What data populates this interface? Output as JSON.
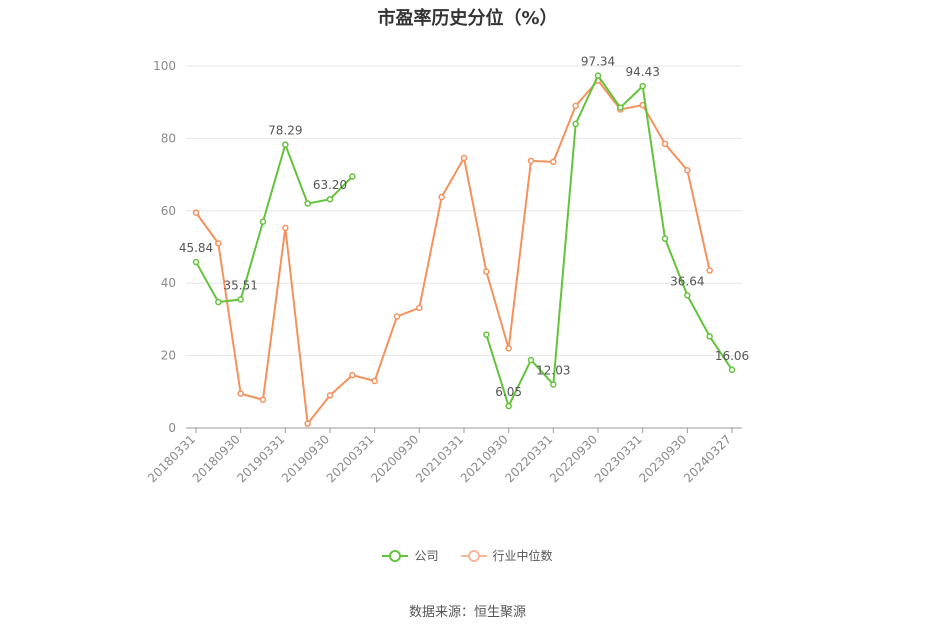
{
  "chart_data": {
    "type": "line",
    "title": "市盈率历史分位（%）",
    "x": [
      "20180331",
      "20180630",
      "20180930",
      "20181231",
      "20190331",
      "20190630",
      "20190930",
      "20191231",
      "20200331",
      "20200630",
      "20200930",
      "20201231",
      "20210331",
      "20210630",
      "20210930",
      "20211231",
      "20220331",
      "20220630",
      "20220930",
      "20221231",
      "20230331",
      "20230630",
      "20230930",
      "20231231",
      "20240327"
    ],
    "xticks": [
      "20180331",
      "20180930",
      "20190331",
      "20190930",
      "20200331",
      "20200930",
      "20210331",
      "20210930",
      "20220331",
      "20220930",
      "20230331",
      "20230930",
      "20240327"
    ],
    "ylim": [
      0,
      100
    ],
    "yticks": [
      0,
      20,
      40,
      60,
      80,
      100
    ],
    "grid": true,
    "series": [
      {
        "name": "公司",
        "color": "#64c33c",
        "values": [
          45.84,
          34.8,
          35.51,
          57.0,
          78.29,
          62.0,
          63.2,
          69.5,
          null,
          null,
          null,
          null,
          null,
          25.8,
          6.05,
          18.8,
          12.03,
          84.0,
          97.34,
          88.5,
          94.43,
          52.3,
          36.64,
          25.3,
          16.06
        ],
        "labels": {
          "0": "45.84",
          "2": "35.51",
          "4": "78.29",
          "6": "63.20",
          "14": "6.05",
          "16": "12.03",
          "18": "97.34",
          "20": "94.43",
          "22": "36.64",
          "24": "16.06"
        }
      },
      {
        "name": "行业中位数",
        "color": "#f4925e",
        "values": [
          59.5,
          51.0,
          9.5,
          7.8,
          55.3,
          1.2,
          9.0,
          14.6,
          13.0,
          30.8,
          33.2,
          63.8,
          74.6,
          43.2,
          22.0,
          73.8,
          73.5,
          89.0,
          96.0,
          88.0,
          89.2,
          78.5,
          71.2,
          43.5,
          null
        ]
      }
    ]
  },
  "legend": {
    "company": "公司",
    "industry": "行业中位数"
  },
  "source": "数据来源：恒生聚源"
}
